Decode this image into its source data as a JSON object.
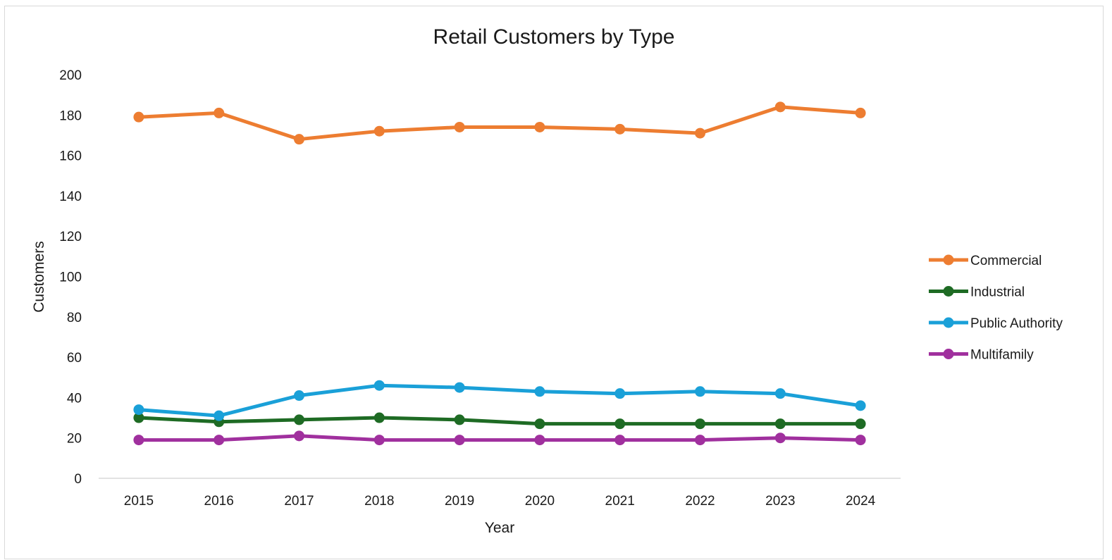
{
  "chart_data": {
    "type": "line",
    "title": "Retail Customers by Type",
    "xlabel": "Year",
    "ylabel": "Customers",
    "ylim": [
      0,
      200
    ],
    "yticks": [
      0,
      20,
      40,
      60,
      80,
      100,
      120,
      140,
      160,
      180,
      200
    ],
    "grid": false,
    "legend_position": "right",
    "categories": [
      "2015",
      "2016",
      "2017",
      "2018",
      "2019",
      "2020",
      "2021",
      "2022",
      "2023",
      "2024"
    ],
    "series": [
      {
        "name": "Commercial",
        "color": "#ED7D31",
        "values": [
          179,
          181,
          168,
          172,
          174,
          174,
          173,
          171,
          184,
          181
        ]
      },
      {
        "name": "Industrial",
        "color": "#1E6B24",
        "values": [
          30,
          28,
          29,
          30,
          29,
          27,
          27,
          27,
          27,
          27
        ]
      },
      {
        "name": "Public Authority",
        "color": "#1AA0D8",
        "values": [
          34,
          31,
          41,
          46,
          45,
          43,
          42,
          43,
          42,
          36
        ]
      },
      {
        "name": "Multifamily",
        "color": "#A0309E",
        "values": [
          19,
          19,
          21,
          19,
          19,
          19,
          19,
          19,
          20,
          19
        ]
      }
    ]
  }
}
